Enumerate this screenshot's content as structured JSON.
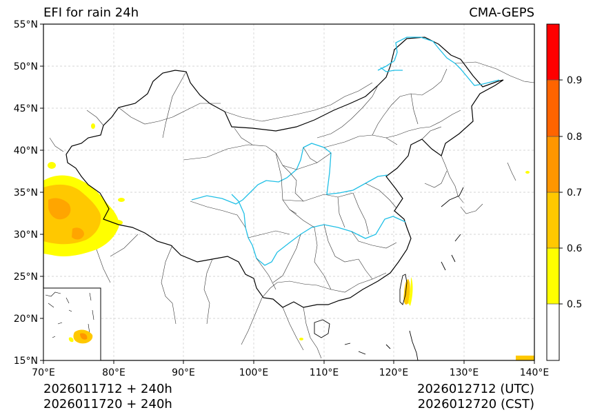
{
  "title": {
    "left": "EFI for rain 24h",
    "right": "CMA-GEPS"
  },
  "axes": {
    "lat_ticks": [
      "55°N",
      "50°N",
      "45°N",
      "40°N",
      "35°N",
      "30°N",
      "25°N",
      "20°N",
      "15°N"
    ],
    "lon_ticks": [
      "70°E",
      "80°E",
      "90°E",
      "100°E",
      "110°E",
      "120°E",
      "130°E",
      "140°E"
    ]
  },
  "colorbar": {
    "ticks": [
      "0.5",
      "0.6",
      "0.7",
      "0.8",
      "0.9"
    ],
    "colors": [
      "#ffffff",
      "#ffff00",
      "#ffc800",
      "#ff9600",
      "#ff6400",
      "#ff0000"
    ]
  },
  "footer": {
    "init_utc": "2026011712 + 240h",
    "init_cst": "2026011720 + 240h",
    "valid_utc": "2026012712 (UTC)",
    "valid_cst": "2026012720 (CST)"
  }
}
